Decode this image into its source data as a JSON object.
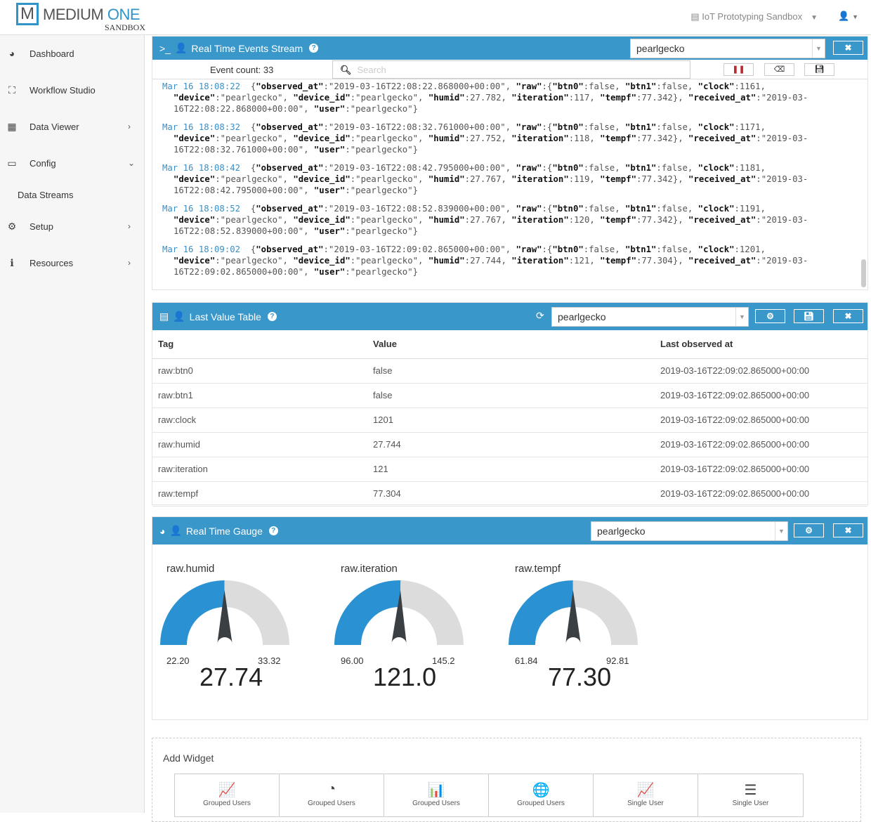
{
  "brand": {
    "logo_letter": "M",
    "name1": "MEDIUM",
    "name2": "ONE",
    "sub": "SANDBOX"
  },
  "header": {
    "project": "IoT Prototyping Sandbox"
  },
  "sidebar": {
    "items": [
      {
        "label": "Dashboard",
        "icon": "dashboard-icon",
        "glyph": "◕",
        "chev": ""
      },
      {
        "label": "Workflow Studio",
        "icon": "sitemap-icon",
        "glyph": "⛶",
        "chev": ""
      },
      {
        "label": "Data Viewer",
        "icon": "table-icon",
        "glyph": "▦",
        "chev": "›"
      },
      {
        "label": "Config",
        "icon": "monitor-icon",
        "glyph": "▭",
        "chev": "⌄"
      },
      {
        "label": "Data Streams",
        "icon": "",
        "glyph": "",
        "chev": "",
        "sub": true
      },
      {
        "label": "Setup",
        "icon": "gears-icon",
        "glyph": "⚙",
        "chev": "›"
      },
      {
        "label": "Resources",
        "icon": "info-icon",
        "glyph": "ℹ",
        "chev": "›"
      }
    ]
  },
  "events": {
    "title": "Real Time Events Stream",
    "user": "pearlgecko",
    "event_count_label": "Event count:",
    "event_count": "33",
    "search_placeholder": "Search",
    "entries": [
      {
        "time": "Mar 16 18:08:22",
        "observed_at": "2019-03-16T22:08:22.868000+00:00",
        "btn0": "false",
        "btn1": "false",
        "clock": "1161",
        "device": "pearlgecko",
        "device_id": "pearlgecko",
        "humid": "27.782",
        "iteration": "117",
        "tempf": "77.342",
        "received_at": "2019-03-16T22:08:22.868000+00:00",
        "user": "pearlgecko"
      },
      {
        "time": "Mar 16 18:08:32",
        "observed_at": "2019-03-16T22:08:32.761000+00:00",
        "btn0": "false",
        "btn1": "false",
        "clock": "1171",
        "device": "pearlgecko",
        "device_id": "pearlgecko",
        "humid": "27.752",
        "iteration": "118",
        "tempf": "77.342",
        "received_at": "2019-03-16T22:08:32.761000+00:00",
        "user": "pearlgecko"
      },
      {
        "time": "Mar 16 18:08:42",
        "observed_at": "2019-03-16T22:08:42.795000+00:00",
        "btn0": "false",
        "btn1": "false",
        "clock": "1181",
        "device": "pearlgecko",
        "device_id": "pearlgecko",
        "humid": "27.767",
        "iteration": "119",
        "tempf": "77.342",
        "received_at": "2019-03-16T22:08:42.795000+00:00",
        "user": "pearlgecko"
      },
      {
        "time": "Mar 16 18:08:52",
        "observed_at": "2019-03-16T22:08:52.839000+00:00",
        "btn0": "false",
        "btn1": "false",
        "clock": "1191",
        "device": "pearlgecko",
        "device_id": "pearlgecko",
        "humid": "27.767",
        "iteration": "120",
        "tempf": "77.342",
        "received_at": "2019-03-16T22:08:52.839000+00:00",
        "user": "pearlgecko"
      },
      {
        "time": "Mar 16 18:09:02",
        "observed_at": "2019-03-16T22:09:02.865000+00:00",
        "btn0": "false",
        "btn1": "false",
        "clock": "1201",
        "device": "pearlgecko",
        "device_id": "pearlgecko",
        "humid": "27.744",
        "iteration": "121",
        "tempf": "77.304",
        "received_at": "2019-03-16T22:09:02.865000+00:00",
        "user": "pearlgecko"
      }
    ]
  },
  "lvt": {
    "title": "Last Value Table",
    "user": "pearlgecko",
    "columns": [
      "Tag",
      "Value",
      "Last observed at"
    ],
    "rows": [
      [
        "raw:btn0",
        "false",
        "2019-03-16T22:09:02.865000+00:00"
      ],
      [
        "raw:btn1",
        "false",
        "2019-03-16T22:09:02.865000+00:00"
      ],
      [
        "raw:clock",
        "1201",
        "2019-03-16T22:09:02.865000+00:00"
      ],
      [
        "raw:humid",
        "27.744",
        "2019-03-16T22:09:02.865000+00:00"
      ],
      [
        "raw:iteration",
        "121",
        "2019-03-16T22:09:02.865000+00:00"
      ],
      [
        "raw:tempf",
        "77.304",
        "2019-03-16T22:09:02.865000+00:00"
      ]
    ]
  },
  "gauge": {
    "title": "Real Time Gauge",
    "user": "pearlgecko",
    "colors": {
      "fill": "#2a92d2",
      "track": "#dcdcdc",
      "needle": "#3a3f44"
    },
    "items": [
      {
        "label": "raw.humid",
        "min": "22.20",
        "max": "33.32",
        "value": "27.74",
        "numeric": 27.74,
        "lo": 22.2,
        "hi": 33.32
      },
      {
        "label": "raw.iteration",
        "min": "96.00",
        "max": "145.2",
        "value": "121.0",
        "numeric": 121.0,
        "lo": 96.0,
        "hi": 145.2
      },
      {
        "label": "raw.tempf",
        "min": "61.84",
        "max": "92.81",
        "value": "77.30",
        "numeric": 77.3,
        "lo": 61.84,
        "hi": 92.81
      }
    ]
  },
  "add_widget": {
    "title": "Add Widget",
    "items": [
      {
        "label": "Grouped Users",
        "icon": "line-chart-icon",
        "glyph": "📈"
      },
      {
        "label": "Grouped Users",
        "icon": "pie-chart-icon",
        "glyph": "◔"
      },
      {
        "label": "Grouped Users",
        "icon": "bar-chart-icon",
        "glyph": "📊"
      },
      {
        "label": "Grouped Users",
        "icon": "globe-icon",
        "glyph": "🌐"
      },
      {
        "label": "Single User",
        "icon": "line-chart-icon",
        "glyph": "📈"
      },
      {
        "label": "Single User",
        "icon": "server-icon",
        "glyph": "☰"
      }
    ]
  }
}
